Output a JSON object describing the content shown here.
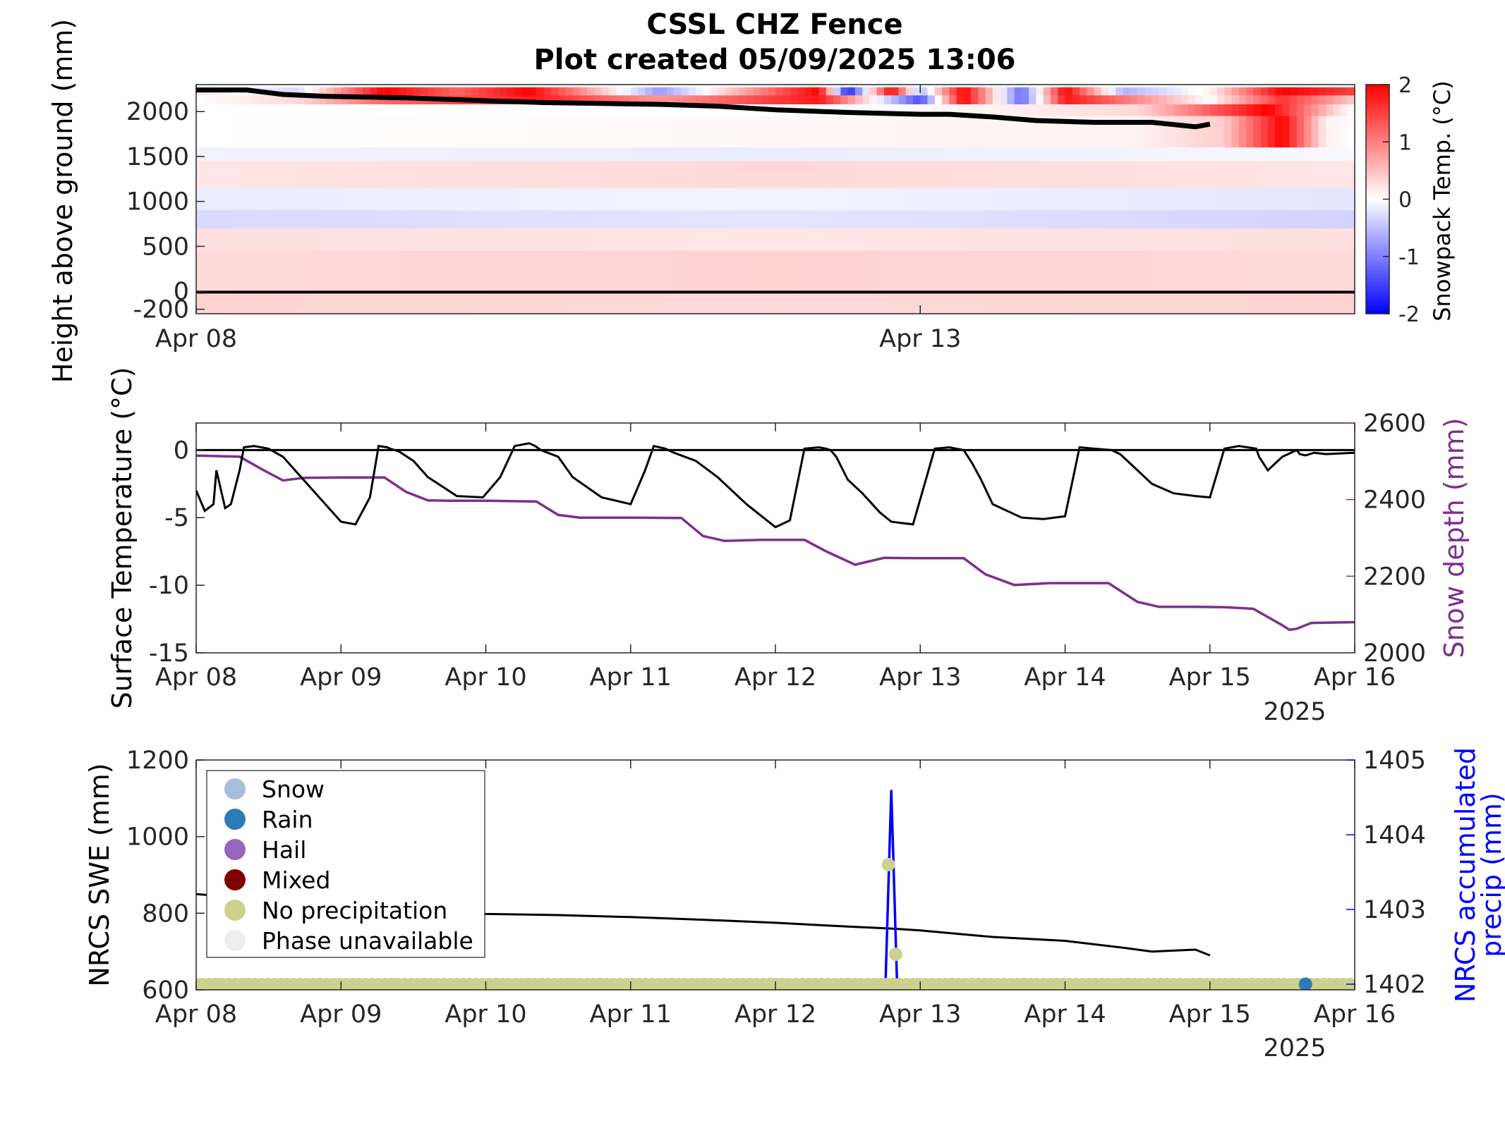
{
  "title": {
    "line1": "CSSL CHZ Fence",
    "line2": "Plot created 05/09/2025 13:06"
  },
  "colors": {
    "axis": "#262626",
    "temp_line": "#000000",
    "snow_depth": "#7E2F8E",
    "nrcs_precip": "#0000FF",
    "cmap_neg": "#0000FF",
    "cmap_pos": "#FF0000"
  },
  "chart_data": [
    {
      "id": "snowpack_temperature",
      "type": "heatmap",
      "ylabel": "Height above ground (mm)",
      "xlim": [
        0,
        8
      ],
      "x_display_range": [
        0,
        8
      ],
      "ylim": [
        -250,
        2300
      ],
      "yticks": [
        -200,
        0,
        500,
        1000,
        1500,
        2000
      ],
      "ytick_labels": [
        "-200",
        "0",
        "500",
        "1000",
        "1500",
        "2000"
      ],
      "xticks": [
        0,
        5
      ],
      "xtick_labels": [
        "Apr 08",
        "Apr 13"
      ],
      "colorbar": {
        "label": "Snowpack Temp. (°C)",
        "range": [
          -2,
          2
        ],
        "ticks": [
          2,
          1,
          0,
          -1,
          -2
        ],
        "tick_labels": [
          "2",
          "1",
          "0",
          "-1",
          "-2"
        ]
      },
      "ground_line_y": -10,
      "snow_surface": {
        "x": [
          0,
          0.35,
          0.6,
          0.9,
          1.2,
          1.5,
          2.0,
          2.4,
          2.8,
          3.2,
          3.6,
          4.0,
          4.5,
          5.0,
          5.2,
          5.5,
          5.8,
          6.2,
          6.6,
          6.9,
          7.0
        ],
        "y": [
          2240,
          2240,
          2190,
          2170,
          2160,
          2150,
          2120,
          2100,
          2090,
          2080,
          2060,
          2020,
          1990,
          1970,
          1970,
          1940,
          1900,
          1880,
          1880,
          1830,
          1860
        ]
      },
      "temperature_bands": [
        {
          "y0": 2180,
          "y1": 2270,
          "x": [
            0,
            0.7,
            1.3,
            1.8,
            2.3,
            3.2,
            4.3,
            4.5,
            4.8,
            5.0,
            5.3,
            5.7,
            6.0,
            6.4,
            7.0,
            7.5,
            8.0
          ],
          "t": [
            0.2,
            -0.3,
            2,
            1.2,
            2,
            -0.8,
            2,
            -1.8,
            2,
            -0.6,
            2,
            -1.2,
            2,
            -0.6,
            0.1,
            2,
            1.5
          ]
        },
        {
          "y0": 2080,
          "y1": 2180,
          "x": [
            0,
            0.7,
            1.3,
            2.0,
            2.3,
            3.2,
            4.3,
            5.0,
            5.3,
            5.7,
            6.0,
            7.0,
            7.5,
            8.0
          ],
          "t": [
            0,
            0.3,
            1.2,
            1.5,
            1.8,
            0.8,
            1.8,
            -1.4,
            2,
            -1.2,
            1.8,
            0,
            1.6,
            0.4
          ]
        },
        {
          "y0": 1950,
          "y1": 2080,
          "x": [
            0,
            2,
            4.6,
            5.5,
            6.5,
            7.4,
            7.9,
            8.0
          ],
          "t": [
            0,
            0,
            0,
            0.1,
            0.3,
            2,
            0.2,
            0
          ]
        },
        {
          "y0": 1600,
          "y1": 1950,
          "x": [
            0,
            6.5,
            7.1,
            7.5,
            7.8,
            8.0
          ],
          "t": [
            0,
            0.1,
            0.4,
            2,
            0.1,
            0
          ]
        },
        {
          "y0": 1450,
          "y1": 1600,
          "x": [
            0,
            4,
            8
          ],
          "t": [
            -0.1,
            -0.15,
            -0.05
          ]
        },
        {
          "y0": 1150,
          "y1": 1450,
          "x": [
            0,
            4,
            8
          ],
          "t": [
            0.2,
            0.3,
            0.2
          ]
        },
        {
          "y0": 900,
          "y1": 1150,
          "x": [
            0,
            4,
            8
          ],
          "t": [
            -0.15,
            -0.1,
            -0.2
          ]
        },
        {
          "y0": 700,
          "y1": 900,
          "x": [
            0,
            4,
            8
          ],
          "t": [
            -0.3,
            -0.2,
            -0.35
          ]
        },
        {
          "y0": 450,
          "y1": 700,
          "x": [
            0,
            4,
            8
          ],
          "t": [
            0.25,
            0.2,
            0.25
          ]
        },
        {
          "y0": 0,
          "y1": 450,
          "x": [
            0,
            4,
            8
          ],
          "t": [
            0.3,
            0.35,
            0.3
          ]
        },
        {
          "y0": -250,
          "y1": 0,
          "x": [
            0,
            4,
            8
          ],
          "t": [
            0.35,
            0.3,
            0.35
          ]
        }
      ]
    },
    {
      "id": "surface_temperature",
      "type": "line",
      "ylabel": "Surface Temperature (°C)",
      "y2label": "Snow depth (mm)",
      "xlim": [
        0,
        8
      ],
      "ylim": [
        -15,
        2
      ],
      "y2lim": [
        2000,
        2600
      ],
      "yticks": [
        0,
        -5,
        -10,
        -15
      ],
      "ytick_labels": [
        "0",
        "-5",
        "-10",
        "-15"
      ],
      "y2ticks": [
        2600,
        2400,
        2200,
        2000
      ],
      "y2tick_labels": [
        "2600",
        "2400",
        "2200",
        "2000"
      ],
      "xticks": [
        0,
        1,
        2,
        3,
        4,
        5,
        6,
        7,
        8
      ],
      "xtick_labels": [
        "Apr 08",
        "Apr 09",
        "Apr 10",
        "Apr 11",
        "Apr 12",
        "Apr 13",
        "Apr 14",
        "Apr 15",
        "Apr 16"
      ],
      "year_label": "2025",
      "zero_line": 0,
      "series": [
        {
          "name": "Surface Temperature",
          "axis": "left",
          "x": [
            0,
            0.06,
            0.12,
            0.14,
            0.2,
            0.24,
            0.3,
            0.33,
            0.4,
            0.5,
            0.6,
            0.75,
            0.85,
            1.0,
            1.1,
            1.2,
            1.26,
            1.32,
            1.34,
            1.4,
            1.5,
            1.6,
            1.8,
            1.98,
            2.1,
            2.2,
            2.3,
            2.34,
            2.38,
            2.5,
            2.6,
            2.8,
            3.0,
            3.1,
            3.16,
            3.2,
            3.24,
            3.3,
            3.45,
            3.6,
            3.8,
            4.0,
            4.1,
            4.2,
            4.3,
            4.35,
            4.38,
            4.42,
            4.5,
            4.6,
            4.72,
            4.8,
            4.95,
            5.1,
            5.2,
            5.3,
            5.33,
            5.36,
            5.42,
            5.5,
            5.7,
            5.85,
            6.0,
            6.1,
            6.2,
            6.32,
            6.34,
            6.38,
            6.45,
            6.6,
            6.75,
            6.9,
            7.0,
            7.1,
            7.2,
            7.32,
            7.34,
            7.4,
            7.5,
            7.6,
            7.62,
            7.66,
            7.72,
            7.8,
            8.0
          ],
          "y": [
            -3,
            -4.5,
            -4.0,
            -1.5,
            -4.3,
            -4.0,
            -1.5,
            0.2,
            0.3,
            0.1,
            -0.5,
            -2.3,
            -3.5,
            -5.3,
            -5.5,
            -3.5,
            0.3,
            0.2,
            0.1,
            -0.1,
            -0.8,
            -2.0,
            -3.4,
            -3.5,
            -2.0,
            0.3,
            0.5,
            0.3,
            0.0,
            -0.5,
            -2.0,
            -3.5,
            -4.0,
            -1.5,
            0.3,
            0.2,
            0.1,
            -0.2,
            -0.8,
            -2.0,
            -4.0,
            -5.7,
            -5.2,
            0.1,
            0.2,
            0.1,
            0.0,
            -0.5,
            -2.2,
            -3.2,
            -4.6,
            -5.3,
            -5.5,
            0.1,
            0.2,
            0.0,
            -0.5,
            -1.0,
            -2.2,
            -4.0,
            -5.0,
            -5.1,
            -4.9,
            0.2,
            0.1,
            0.0,
            -0.1,
            -0.3,
            -1.0,
            -2.5,
            -3.2,
            -3.4,
            -3.5,
            0.1,
            0.3,
            0.1,
            -0.5,
            -1.5,
            -0.5,
            0.0,
            -0.3,
            -0.4,
            -0.2,
            -0.3,
            -0.2
          ]
        },
        {
          "name": "Snow depth",
          "axis": "right",
          "x": [
            0,
            0.3,
            0.45,
            0.6,
            0.75,
            1.0,
            1.3,
            1.45,
            1.6,
            1.75,
            2.0,
            2.35,
            2.5,
            2.65,
            3.0,
            3.35,
            3.5,
            3.65,
            3.9,
            4.2,
            4.35,
            4.55,
            4.75,
            5.0,
            5.3,
            5.45,
            5.65,
            5.9,
            6.1,
            6.3,
            6.5,
            6.65,
            6.9,
            7.1,
            7.3,
            7.5,
            7.55,
            7.6,
            7.7,
            8.0
          ],
          "y": [
            2515,
            2512,
            2480,
            2450,
            2457,
            2458,
            2458,
            2420,
            2398,
            2397,
            2397,
            2395,
            2360,
            2353,
            2353,
            2352,
            2305,
            2292,
            2295,
            2295,
            2265,
            2230,
            2248,
            2247,
            2247,
            2205,
            2177,
            2182,
            2182,
            2182,
            2133,
            2120,
            2120,
            2119,
            2115,
            2072,
            2060,
            2063,
            2078,
            2080
          ]
        }
      ]
    },
    {
      "id": "nrcs",
      "type": "line",
      "ylabel": "NRCS SWE (mm)",
      "y2label_lines": [
        "NRCS accumulated",
        "precip (mm)"
      ],
      "xlim": [
        0,
        8
      ],
      "ylim": [
        600,
        1200
      ],
      "y2lim": [
        1402,
        1405
      ],
      "yticks": [
        1200,
        1000,
        800,
        600
      ],
      "ytick_labels": [
        "1200",
        "1000",
        "800",
        "600"
      ],
      "y2ticks": [
        1405,
        1404,
        1403,
        1402
      ],
      "y2tick_labels": [
        "1405",
        "1404",
        "1403",
        "1402"
      ],
      "xticks": [
        0,
        1,
        2,
        3,
        4,
        5,
        6,
        7,
        8
      ],
      "xtick_labels": [
        "Apr 08",
        "Apr 09",
        "Apr 10",
        "Apr 11",
        "Apr 12",
        "Apr 13",
        "Apr 14",
        "Apr 15",
        "Apr 16"
      ],
      "year_label": "2025",
      "legend": [
        {
          "label": "Snow",
          "color": "#A6BDDB"
        },
        {
          "label": "Rain",
          "color": "#2C7BB6"
        },
        {
          "label": "Hail",
          "color": "#9467BD"
        },
        {
          "label": "Mixed",
          "color": "#800000"
        },
        {
          "label": "No precipitation",
          "color": "#CDD18E"
        },
        {
          "label": "Phase unavailable",
          "color": "#EEEEEE"
        }
      ],
      "legend_position": "top-left",
      "series": [
        {
          "name": "NRCS SWE",
          "axis": "left",
          "x": [
            0,
            0.5,
            1.0,
            1.5,
            2.0,
            2.5,
            3.0,
            3.5,
            4.0,
            4.5,
            4.8,
            5.0,
            5.5,
            6.0,
            6.4,
            6.6,
            6.9,
            7.0
          ],
          "y": [
            850,
            835,
            820,
            808,
            798,
            795,
            790,
            783,
            775,
            765,
            760,
            755,
            738,
            728,
            710,
            700,
            705,
            690
          ]
        },
        {
          "name": "NRCS accumulated precip",
          "axis": "right",
          "x": [
            4.76,
            4.8,
            4.84,
            4.88
          ],
          "y": [
            1402,
            1404.6,
            1402,
            1402
          ]
        }
      ],
      "phase_markers": {
        "baseline_y": 1402,
        "baseline_x_start": 0,
        "baseline_x_end": 8,
        "baseline_spacing": 0.045,
        "baseline_phase": "No precipitation",
        "special": [
          {
            "x": 4.78,
            "y2": 1403.6,
            "phase": "No precipitation"
          },
          {
            "x": 4.83,
            "y2": 1402.4,
            "phase": "No precipitation"
          },
          {
            "x": 7.66,
            "y2": 1402,
            "phase": "Rain"
          }
        ]
      }
    }
  ]
}
